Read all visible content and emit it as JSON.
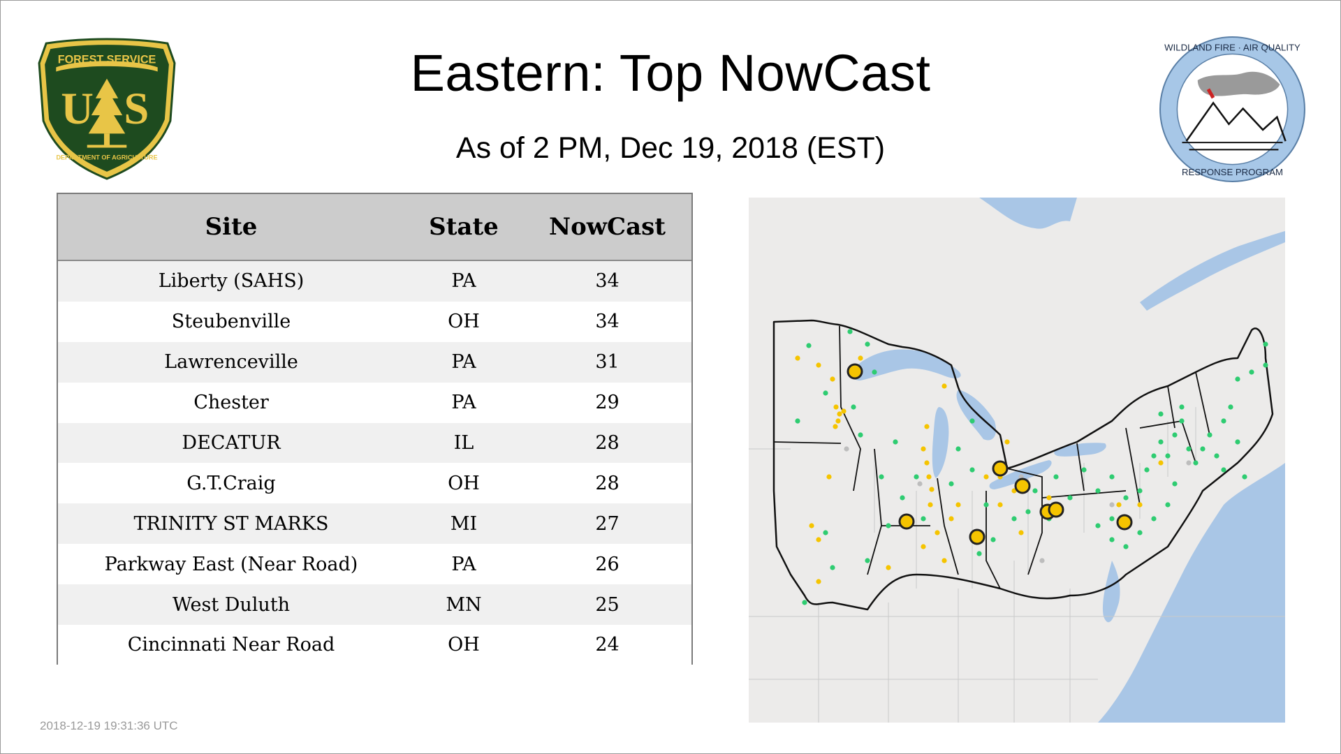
{
  "header": {
    "title": "Eastern: Top NowCast",
    "subtitle": "As of  2 PM, Dec 19, 2018 (EST)"
  },
  "logos": {
    "forest_service": {
      "top_text": "FOREST SERVICE",
      "letters": "U S",
      "bottom_text": "DEPARTMENT OF AGRICULTURE",
      "colors": {
        "green": "#1e4b1f",
        "gold": "#e8c547"
      }
    },
    "wildland": {
      "ring_text_top": "WILDLAND FIRE · AIR QUALITY",
      "ring_text_bottom": "RESPONSE PROGRAM",
      "colors": {
        "ring": "#a7c7e7",
        "smoke": "#9a9a9a",
        "accent": "#cc2222"
      }
    }
  },
  "table": {
    "columns": [
      "Site",
      "State",
      "NowCast"
    ],
    "rows": [
      {
        "site": "Liberty (SAHS)",
        "state": "PA",
        "nowcast": "34"
      },
      {
        "site": "Steubenville",
        "state": "OH",
        "nowcast": "34"
      },
      {
        "site": "Lawrenceville",
        "state": "PA",
        "nowcast": "31"
      },
      {
        "site": "Chester",
        "state": "PA",
        "nowcast": "29"
      },
      {
        "site": "DECATUR",
        "state": "IL",
        "nowcast": "28"
      },
      {
        "site": "G.T.Craig",
        "state": "OH",
        "nowcast": "28"
      },
      {
        "site": "TRINITY ST MARKS",
        "state": "MI",
        "nowcast": "27"
      },
      {
        "site": "Parkway East (Near Road)",
        "state": "PA",
        "nowcast": "26"
      },
      {
        "site": "West Duluth",
        "state": "MN",
        "nowcast": "25"
      },
      {
        "site": "Cincinnati Near Road",
        "state": "OH",
        "nowcast": "24"
      }
    ]
  },
  "map": {
    "colors": {
      "land": "#ecebea",
      "water": "#a9c6e6",
      "good": "#2ecc71",
      "moderate": "#f5c400",
      "no_data": "#bdbdbd",
      "border": "#111111"
    },
    "legend_meaning": {
      "good": "green",
      "moderate": "yellow",
      "top_sites": "large yellow circle"
    }
  },
  "footer": {
    "timestamp": "2018-12-19 19:31:36 UTC"
  }
}
